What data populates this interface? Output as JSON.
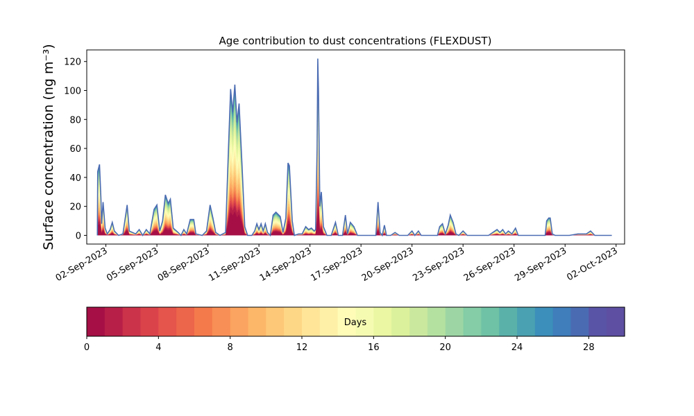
{
  "chart_data": [
    {
      "type": "area",
      "title": "Age contribution to dust concentrations (FLEXDUST)",
      "ylabel": "Surface concentration (ng m⁻³)",
      "xlabel": "",
      "ylim": [
        -6,
        128
      ],
      "xlim": [
        "2023-08-31T21:00",
        "2023-10-02T12:00"
      ],
      "yticks": [
        0,
        20,
        40,
        60,
        80,
        100,
        120
      ],
      "xticks": [
        "2023-09-02",
        "2023-09-05",
        "2023-09-08",
        "2023-09-11",
        "2023-09-14",
        "2023-09-17",
        "2023-09-20",
        "2023-09-23",
        "2023-09-26",
        "2023-09-29",
        "2023-10-02"
      ],
      "xtick_labels": [
        "02-Sep-2023",
        "05-Sep-2023",
        "08-Sep-2023",
        "11-Sep-2023",
        "14-Sep-2023",
        "17-Sep-2023",
        "20-Sep-2023",
        "23-Sep-2023",
        "26-Sep-2023",
        "29-Sep-2023",
        "02-Oct-2023"
      ],
      "grid": false,
      "total_series": {
        "name": "total",
        "points": [
          [
            "2023-09-01T12:00",
            0
          ],
          [
            "2023-09-01T12:30",
            44
          ],
          [
            "2023-09-01T15:00",
            49
          ],
          [
            "2023-09-01T17:00",
            26
          ],
          [
            "2023-09-01T18:00",
            8
          ],
          [
            "2023-09-01T20:00",
            23
          ],
          [
            "2023-09-01T23:00",
            5
          ],
          [
            "2023-09-02T02:00",
            1
          ],
          [
            "2023-09-02T06:00",
            4
          ],
          [
            "2023-09-02T09:00",
            9
          ],
          [
            "2023-09-02T12:00",
            3
          ],
          [
            "2023-09-02T18:00",
            0
          ],
          [
            "2023-09-03T00:00",
            1
          ],
          [
            "2023-09-03T06:00",
            21
          ],
          [
            "2023-09-03T09:00",
            3
          ],
          [
            "2023-09-03T18:00",
            1
          ],
          [
            "2023-09-03T23:00",
            4
          ],
          [
            "2023-09-04T04:00",
            0
          ],
          [
            "2023-09-04T09:00",
            4
          ],
          [
            "2023-09-04T14:00",
            1
          ],
          [
            "2023-09-04T20:00",
            18
          ],
          [
            "2023-09-05T00:00",
            21
          ],
          [
            "2023-09-05T04:00",
            3
          ],
          [
            "2023-09-05T08:00",
            10
          ],
          [
            "2023-09-05T12:00",
            28
          ],
          [
            "2023-09-05T16:00",
            22
          ],
          [
            "2023-09-05T19:00",
            25
          ],
          [
            "2023-09-05T23:00",
            5
          ],
          [
            "2023-09-06T06:00",
            2
          ],
          [
            "2023-09-06T10:00",
            0
          ],
          [
            "2023-09-06T14:00",
            4
          ],
          [
            "2023-09-06T18:00",
            1
          ],
          [
            "2023-09-06T23:00",
            11
          ],
          [
            "2023-09-07T04:00",
            11
          ],
          [
            "2023-09-07T07:00",
            1
          ],
          [
            "2023-09-07T16:00",
            0
          ],
          [
            "2023-09-07T22:00",
            3
          ],
          [
            "2023-09-08T03:00",
            21
          ],
          [
            "2023-09-08T07:00",
            12
          ],
          [
            "2023-09-08T11:00",
            2
          ],
          [
            "2023-09-08T17:00",
            0
          ],
          [
            "2023-09-09T01:00",
            2
          ],
          [
            "2023-09-09T05:00",
            60
          ],
          [
            "2023-09-09T08:00",
            101
          ],
          [
            "2023-09-09T11:00",
            85
          ],
          [
            "2023-09-09T14:00",
            104
          ],
          [
            "2023-09-09T17:00",
            78
          ],
          [
            "2023-09-09T20:00",
            91
          ],
          [
            "2023-09-10T00:00",
            50
          ],
          [
            "2023-09-10T04:00",
            6
          ],
          [
            "2023-09-10T08:00",
            0
          ],
          [
            "2023-09-10T14:00",
            0
          ],
          [
            "2023-09-10T18:00",
            3
          ],
          [
            "2023-09-10T21:00",
            8
          ],
          [
            "2023-09-11T00:00",
            4
          ],
          [
            "2023-09-11T03:00",
            8
          ],
          [
            "2023-09-11T06:00",
            3
          ],
          [
            "2023-09-11T09:00",
            8
          ],
          [
            "2023-09-11T12:00",
            2
          ],
          [
            "2023-09-11T16:00",
            0
          ],
          [
            "2023-09-11T20:00",
            14
          ],
          [
            "2023-09-12T00:00",
            16
          ],
          [
            "2023-09-12T06:00",
            13
          ],
          [
            "2023-09-12T10:00",
            2
          ],
          [
            "2023-09-12T14:00",
            12
          ],
          [
            "2023-09-12T17:00",
            50
          ],
          [
            "2023-09-12T19:00",
            48
          ],
          [
            "2023-09-12T23:00",
            10
          ],
          [
            "2023-09-13T02:00",
            0
          ],
          [
            "2023-09-13T08:00",
            1
          ],
          [
            "2023-09-13T13:00",
            1
          ],
          [
            "2023-09-13T18:00",
            6
          ],
          [
            "2023-09-13T22:00",
            4
          ],
          [
            "2023-09-14T02:00",
            5
          ],
          [
            "2023-09-14T06:00",
            3
          ],
          [
            "2023-09-14T08:00",
            4
          ],
          [
            "2023-09-14T10:00",
            60
          ],
          [
            "2023-09-14T11:00",
            122
          ],
          [
            "2023-09-14T12:00",
            100
          ],
          [
            "2023-09-14T14:00",
            20
          ],
          [
            "2023-09-14T16:00",
            30
          ],
          [
            "2023-09-14T19:00",
            6
          ],
          [
            "2023-09-15T00:00",
            0
          ],
          [
            "2023-09-15T06:00",
            0
          ],
          [
            "2023-09-15T12:00",
            9
          ],
          [
            "2023-09-15T16:00",
            0
          ],
          [
            "2023-09-15T22:00",
            0
          ],
          [
            "2023-09-16T02:00",
            14
          ],
          [
            "2023-09-16T05:00",
            1
          ],
          [
            "2023-09-16T09:00",
            9
          ],
          [
            "2023-09-16T14:00",
            6
          ],
          [
            "2023-09-16T19:00",
            0
          ],
          [
            "2023-09-17T06:00",
            0
          ],
          [
            "2023-09-17T12:00",
            0
          ],
          [
            "2023-09-17T16:00",
            0
          ],
          [
            "2023-09-17T21:00",
            0
          ],
          [
            "2023-09-18T00:00",
            23
          ],
          [
            "2023-09-18T03:00",
            2
          ],
          [
            "2023-09-18T06:00",
            0
          ],
          [
            "2023-09-18T09:00",
            7
          ],
          [
            "2023-09-18T12:00",
            0
          ],
          [
            "2023-09-18T18:00",
            0
          ],
          [
            "2023-09-19T00:00",
            2
          ],
          [
            "2023-09-19T06:00",
            0
          ],
          [
            "2023-09-19T18:00",
            0
          ],
          [
            "2023-09-20T00:00",
            3
          ],
          [
            "2023-09-20T04:00",
            0
          ],
          [
            "2023-09-20T09:00",
            3
          ],
          [
            "2023-09-20T13:00",
            0
          ],
          [
            "2023-09-20T18:00",
            0
          ],
          [
            "2023-09-21T06:00",
            0
          ],
          [
            "2023-09-21T12:00",
            0
          ],
          [
            "2023-09-21T15:00",
            6
          ],
          [
            "2023-09-21T19:00",
            8
          ],
          [
            "2023-09-21T23:00",
            1
          ],
          [
            "2023-09-22T03:00",
            7
          ],
          [
            "2023-09-22T06:00",
            14
          ],
          [
            "2023-09-22T10:00",
            9
          ],
          [
            "2023-09-22T14:00",
            1
          ],
          [
            "2023-09-22T18:00",
            0
          ],
          [
            "2023-09-23T00:00",
            3
          ],
          [
            "2023-09-23T06:00",
            0
          ],
          [
            "2023-09-23T18:00",
            0
          ],
          [
            "2023-09-24T00:00",
            0
          ],
          [
            "2023-09-24T06:00",
            0
          ],
          [
            "2023-09-24T12:00",
            0
          ],
          [
            "2023-09-24T18:00",
            2
          ],
          [
            "2023-09-25T00:00",
            4
          ],
          [
            "2023-09-25T04:00",
            2
          ],
          [
            "2023-09-25T08:00",
            4
          ],
          [
            "2023-09-25T12:00",
            1
          ],
          [
            "2023-09-25T16:00",
            3
          ],
          [
            "2023-09-25T21:00",
            1
          ],
          [
            "2023-09-26T02:00",
            5
          ],
          [
            "2023-09-26T06:00",
            0
          ],
          [
            "2023-09-26T18:00",
            0
          ],
          [
            "2023-09-27T06:00",
            0
          ],
          [
            "2023-09-27T12:00",
            0
          ],
          [
            "2023-09-27T20:00",
            0
          ],
          [
            "2023-09-27T22:00",
            10
          ],
          [
            "2023-09-28T01:00",
            12
          ],
          [
            "2023-09-28T03:00",
            12
          ],
          [
            "2023-09-28T06:00",
            1
          ],
          [
            "2023-09-28T10:00",
            0
          ],
          [
            "2023-09-28T22:00",
            0
          ],
          [
            "2023-09-29T06:00",
            0
          ],
          [
            "2023-09-29T18:00",
            1
          ],
          [
            "2023-09-30T00:00",
            1
          ],
          [
            "2023-09-30T06:00",
            1
          ],
          [
            "2023-09-30T12:00",
            3
          ],
          [
            "2023-09-30T18:00",
            0
          ],
          [
            "2023-10-01T06:00",
            0
          ],
          [
            "2023-10-01T18:00",
            0
          ]
        ]
      },
      "age_bins": {
        "label": "Days",
        "min": 0,
        "max": 30,
        "ticks": [
          0,
          4,
          8,
          12,
          16,
          20,
          24,
          28
        ],
        "colors": [
          "#a50f45",
          "#b71f48",
          "#cb334b",
          "#db434b",
          "#e5554b",
          "#ec664b",
          "#f47a4c",
          "#f88f56",
          "#fba360",
          "#fdb769",
          "#fdc878",
          "#fed786",
          "#fee597",
          "#fef1a7",
          "#fffcb8",
          "#f6fbb2",
          "#ebf7a2",
          "#dcf19b",
          "#cbe99e",
          "#b5e1a0",
          "#9dd6a4",
          "#84cda6",
          "#6fc2a5",
          "#5ab1aa",
          "#4aa1b1",
          "#3c8fba",
          "#3f7dbb",
          "#4a6bb2",
          "#5954a6",
          "#5e4fa2"
        ]
      }
    }
  ]
}
